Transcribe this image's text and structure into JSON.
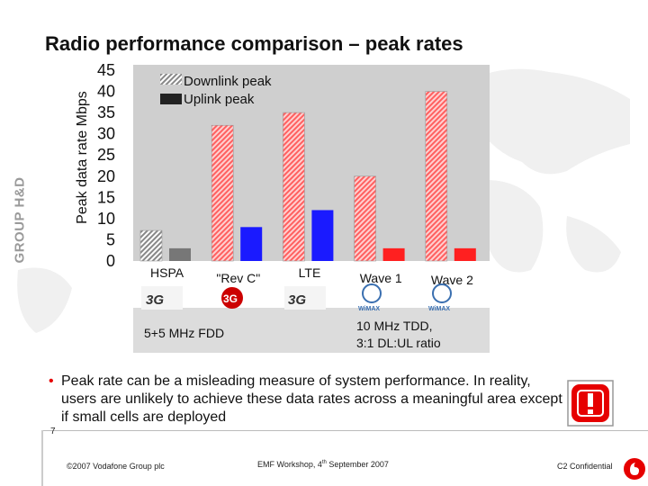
{
  "slide": {
    "title": "Radio performance comparison – peak rates",
    "side_label": "GROUP H&D",
    "slide_number": "7",
    "footer_copyright": "©2007 Vodafone Group plc",
    "footer_event_prefix": "EMF Workshop, 4",
    "footer_event_sup": "th",
    "footer_event_suffix": " September 2007",
    "footer_confidential": "C2 Confidential",
    "bullet": "Peak rate can be a misleading measure of system performance. In reality, users are unlikely to achieve these data rates across a meaningful area except if small cells are deployed",
    "note_left": "5+5 MHz FDD",
    "note_right_line1": "10 MHz TDD,",
    "note_right_line2": "3:1 DL:UL ratio",
    "logos": {
      "hspa": "3G",
      "rev_c": "3G",
      "lte": "3G",
      "wave1": "WiMAX",
      "wave2": "WiMAX"
    }
  },
  "chart_data": {
    "type": "bar",
    "title": "",
    "xlabel": "",
    "ylabel": "Peak data rate Mbps",
    "ylim": [
      0,
      45
    ],
    "yticks": [
      "0",
      "5",
      "10",
      "15",
      "20",
      "25",
      "30",
      "35",
      "40",
      "45"
    ],
    "grid": false,
    "legend_position": "top-left",
    "categories": [
      "HSPA",
      "\"Rev C\"",
      "LTE",
      "Wave 1",
      "Wave 2"
    ],
    "series": [
      {
        "name": "Downlink peak",
        "values": [
          7.2,
          32,
          35,
          20,
          40
        ],
        "colors": [
          "#d8d8d8",
          "#ff6060",
          "#ff6060",
          "#ff6060",
          "#ff6060"
        ]
      },
      {
        "name": "Uplink peak",
        "values": [
          3,
          8,
          12,
          3,
          3
        ],
        "colors": [
          "#777777",
          "#1a1aff",
          "#1a1aff",
          "#ff2020",
          "#ff2020"
        ]
      }
    ],
    "colors": {
      "plot_bg": "#cfcfcf",
      "legend_downlink": "#bbbbbb",
      "legend_uplink": "#222222"
    }
  }
}
